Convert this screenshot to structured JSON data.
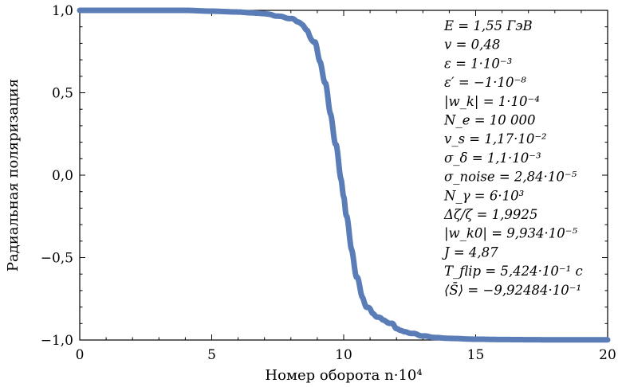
{
  "chart_data": {
    "type": "line",
    "xlabel": "Номер оборота n·10⁴",
    "ylabel": "Радиальная поляризация",
    "xlim": [
      0,
      20
    ],
    "ylim": [
      -1.0,
      1.0
    ],
    "x_ticks": [
      "0",
      "5",
      "10",
      "15",
      "20"
    ],
    "y_ticks": [
      "1,0",
      "0,5",
      "0,0",
      "−0,5",
      "−1,0"
    ],
    "grid": false,
    "color": "#5a7db8",
    "series": [
      {
        "x": [
          0,
          1,
          2,
          3,
          4,
          5,
          6,
          6.5,
          7,
          7.5,
          8,
          8.3,
          8.6,
          8.9,
          9.1,
          9.3,
          9.5,
          9.7,
          9.9,
          10.0,
          10.1,
          10.3,
          10.5,
          10.7,
          10.9,
          11.1,
          11.3,
          11.5,
          11.8,
          12.0,
          12.3,
          12.6,
          13.0,
          13.5,
          14.0,
          15.0,
          16.0,
          17.0,
          18.0,
          19.0,
          20.0
        ],
        "y": [
          1.0,
          1.0,
          1.0,
          1.0,
          1.0,
          0.995,
          0.99,
          0.985,
          0.98,
          0.965,
          0.95,
          0.93,
          0.88,
          0.8,
          0.7,
          0.55,
          0.38,
          0.18,
          -0.02,
          -0.12,
          -0.25,
          -0.45,
          -0.62,
          -0.74,
          -0.8,
          -0.84,
          -0.86,
          -0.88,
          -0.9,
          -0.93,
          -0.95,
          -0.96,
          -0.975,
          -0.985,
          -0.99,
          -0.995,
          -0.997,
          -0.998,
          -0.999,
          -0.999,
          -0.999
        ]
      }
    ],
    "annotations": [
      "E = 1,55 ГэВ",
      "v = 0,48",
      "ε = 1·10⁻³",
      "ε′ = −1·10⁻⁸",
      "|w_k| = 1·10⁻⁴",
      "N_e = 10 000",
      "v_s = 1,17·10⁻²",
      "σ_δ = 1,1·10⁻³",
      "σ_noise = 2,84·10⁻⁵",
      "N_γ = 6·10³",
      "Δζ/ζ = 1,9925",
      "|w_k0| = 9,934·10⁻⁵",
      "J = 4,87",
      "T_flip = 5,424·10⁻¹ с",
      "⟨S̄⟩ = −9,92484·10⁻¹"
    ]
  }
}
